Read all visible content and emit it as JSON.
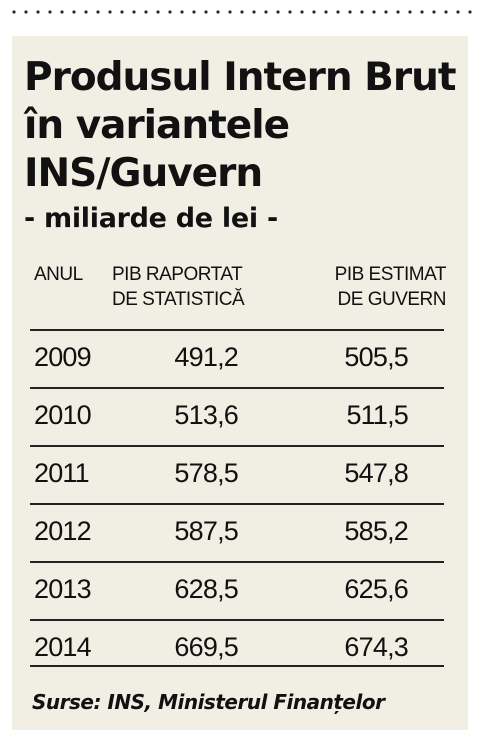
{
  "chart_data": {
    "type": "table",
    "title": "Produsul Intern Brut în variantele INS/Guvern",
    "subtitle": "- miliarde de lei -",
    "columns": [
      "ANUL",
      "PIB RAPORTAT DE STATISTICĂ",
      "PIB ESTIMAT DE GUVERN"
    ],
    "header": {
      "year": "ANUL",
      "ins_line1": "PIB RAPORTAT",
      "ins_line2": "DE STATISTICĂ",
      "gov_line1": "PIB ESTIMAT",
      "gov_line2": "DE GUVERN"
    },
    "rows": [
      {
        "year": "2009",
        "ins": "491,2",
        "gov": "505,5"
      },
      {
        "year": "2010",
        "ins": "513,6",
        "gov": "511,5"
      },
      {
        "year": "2011",
        "ins": "578,5",
        "gov": "547,8"
      },
      {
        "year": "2012",
        "ins": "587,5",
        "gov": "585,2"
      },
      {
        "year": "2013",
        "ins": "628,5",
        "gov": "625,6"
      },
      {
        "year": "2014",
        "ins": "669,5",
        "gov": "674,3"
      }
    ],
    "source": "Surse: INS, Ministerul Finanțelor"
  }
}
